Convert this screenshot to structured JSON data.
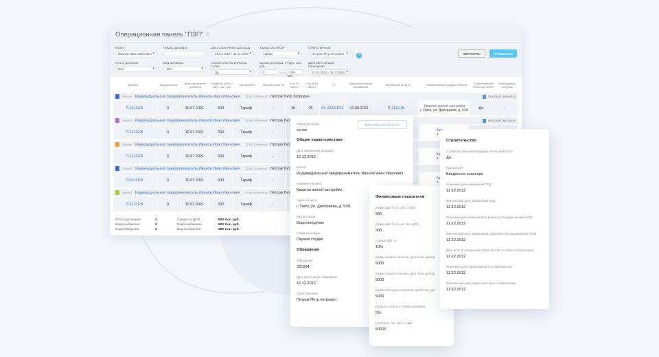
{
  "header": {
    "title": "Операционная панель \"ПЗП\"",
    "star_icon": "star-icon"
  },
  "filters": {
    "client": {
      "label": "Клиент",
      "value": "Иванов Иван Иванович"
    },
    "contract_number": {
      "label": "Номер договора",
      "value": ""
    },
    "contract_date": {
      "label": "Дата заключения договора",
      "value": "01.01.2020 - 31.12.2020"
    },
    "tariff": {
      "label": "Тариф или ИПЗП",
      "value": "Тариф"
    },
    "responsible": {
      "label": "Ответственный",
      "value": "Петров Петр петрович"
    },
    "status": {
      "label": "Статус договора",
      "value": "Все"
    },
    "type": {
      "label": "Вид договора",
      "value": "Все"
    },
    "construction": {
      "label": "Строительство внеплощ. сетей",
      "value": "Да"
    },
    "sum": {
      "label": "Сумма договора, с НДС, тыс. руб.",
      "from": "0",
      "to": "1 000 000"
    },
    "reg_date": {
      "label": "Дата регистрации обращения",
      "value": "01.01.2020 - 31.12.2020"
    },
    "add_label": "+",
    "reset_label": "СБРОСИТЬ",
    "apply_label": "ПРИМЕНИТЬ"
  },
  "table": {
    "columns": [
      "Договор",
      "Вид договора",
      "Дата заключения договора",
      "Сумма по ДНП, с НДС, тыс. руб",
      "Тариф/ИПЗП",
      "Мероприятия ВК",
      "V по ТУ, м3/сут",
      "V по ДНП, м3/сут",
      "ТУ",
      "Дата регистрации обращения",
      "Обращение на ДНП",
      "Наименование и адрес объекта",
      "Строительство внеплощ. сетей",
      "Новоподключ. нагрузки"
    ],
    "client_label": "Клиент",
    "responsible_label": "Ответственный",
    "quick_view": "Быстрый просмотр",
    "rows": [
      {
        "icon_color": "#3b6fd1",
        "client": "Индивидуальный предприниматель Иванов Иван Иванович",
        "responsible": "Петров Петр петрович",
        "cells": [
          "П-11111/В",
          "0",
          "10.07.2021",
          "300",
          "Тариф",
          "-",
          "30",
          "35",
          "05-03/001/23",
          "31.08.2021",
          "П-11111/В"
        ],
        "object": "Квартал жилой застройки",
        "address": "г. Омск, ул. Дмитриева, д. 5/31",
        "construction": "Да",
        "new_load": "-"
      },
      {
        "icon_color": "#b36fd0",
        "client": "Индивидуальный предприниматель Иванов Иван Иванович",
        "responsible": "Петров Петр пе",
        "cells": [
          "П-11112/В",
          "0",
          "10.07.2021",
          "300",
          "Тариф",
          "-"
        ],
        "object": "Квартал ж",
        "address": "г. Омск, у"
      },
      {
        "icon_color": "#f0a030",
        "client": "Индивидуальный предприниматель Иванов Иван Иванович",
        "responsible": "Петров Петр пе",
        "cells": [
          "П-11113/В",
          "0",
          "10.07.2021",
          "300",
          "Тариф",
          "-"
        ],
        "object": "Квартал ж",
        "address": "г. Омск, у"
      },
      {
        "icon_color": "#3b6fd1",
        "client": "Индивидуальный предприниматель Иванов Иван Иванович",
        "responsible": "Петров Петр пе",
        "cells": [
          "П-11111/В",
          "0",
          "10.07.2021",
          "300",
          "Тариф",
          "-"
        ],
        "object": "Квартал ж",
        "address": "г. Омск, у"
      },
      {
        "icon_color": "#a6cf3a",
        "client": "Индивидуальный предприниматель Иванов Иван Иванович",
        "responsible": "Петров Петр пе",
        "cells": [
          "П-11111/В",
          "0",
          "10.07.2021",
          "300",
          "Тариф",
          "-"
        ],
        "object": "",
        "address": ""
      }
    ]
  },
  "footer": {
    "left": [
      {
        "label": "Итого договоров:",
        "value": "3"
      },
      {
        "label": "Водоснабжение:",
        "value": "0"
      },
      {
        "label": "Водоотведение:",
        "value": "3"
      }
    ],
    "right": [
      {
        "label": "Сумма по ДНП:",
        "value": "900 тыс. руб."
      },
      {
        "label": "Водоснабжение:",
        "value": "600 тыс. руб."
      },
      {
        "label": "Водоотведение:",
        "value": "300 тыс. руб."
      }
    ]
  },
  "card_general": {
    "number_label": "Номер договора",
    "number": "234452",
    "xls_label": "Выгрузить данные в XLS",
    "section1": "Общие характеристики",
    "fields": [
      {
        "label": "Дата заключения договора",
        "value": "12.12.2012"
      },
      {
        "label": "Клиент",
        "value": "Индивидуальный предприниматель Иванов Иван Иванович"
      },
      {
        "label": "Название объекта",
        "value": "Квартал жилой застройки"
      },
      {
        "label": "Адрес объекта",
        "value": "г. Омск, ул. Дмитриева, д. 5/31"
      },
      {
        "label": "Вид договора",
        "value": "Водоотведение"
      },
      {
        "label": "Стадия договора",
        "value": "Первая стадия"
      }
    ],
    "section2": "Обращение",
    "fields2": [
      {
        "label": "Обращение",
        "value": "321654"
      },
      {
        "label": "Дата регистрации обращения",
        "value": "12.12.2012"
      },
      {
        "label": "Ответственный",
        "value": "Петров Петр петрович"
      }
    ]
  },
  "card_finance": {
    "title": "Финансовые показатели",
    "fields": [
      {
        "label": "Сумма ДоП (тыс. руб. с НДС)",
        "value": "300"
      },
      {
        "label": "Сумма ДоП (тыс. руб. без НДС)",
        "value": "300"
      },
      {
        "label": "Ставка НДС, %",
        "value": "10%"
      },
      {
        "label": "Сумма первого платежа, дата план, дата ф",
        "value": "5000"
      },
      {
        "label": "Сумма второго платежа, дата план, дата ф",
        "value": "5000"
      },
      {
        "label": "Сумма последнего платежа, дата план, дат",
        "value": "5000"
      },
      {
        "label": "Процент оплаты от суммы договора",
        "value": "5%"
      },
      {
        "label": "Оплачено, тыс. руб. с НДС",
        "value": "50000"
      }
    ]
  },
  "card_construction": {
    "title": "Строительство",
    "fields": [
      {
        "label": "Строительство внеплощадных сетей требуется?",
        "value": "Да"
      },
      {
        "label": "Признак ИП",
        "value": "Введённое значение"
      },
      {
        "label": "Плановая дата завершения ПСД",
        "value": "12.12.2012"
      },
      {
        "label": "Фактическая дата завершения ПСД",
        "value": "12.12.2012"
      },
      {
        "label": "Плановая дата завершения строительства водоканалам сетей",
        "value": "12.12.2012"
      },
      {
        "label": "Фактическая дата завершения строительства водоканалом сетей",
        "value": "12.12.2012"
      },
      {
        "label": "Дата акта об исполнении обязательств со стороны Водоканала",
        "value": "12.12.2012"
      },
      {
        "label": "Плановая дата подписания акта о подключении",
        "value": "12.12.2012"
      },
      {
        "label": "Фактическая дата подписания акта о подключении",
        "value": "12.12.2012"
      }
    ]
  },
  "colors": {
    "accent": "#5fc5f2",
    "link": "#3b6fd1",
    "panel_bg": "#eef1f5"
  }
}
